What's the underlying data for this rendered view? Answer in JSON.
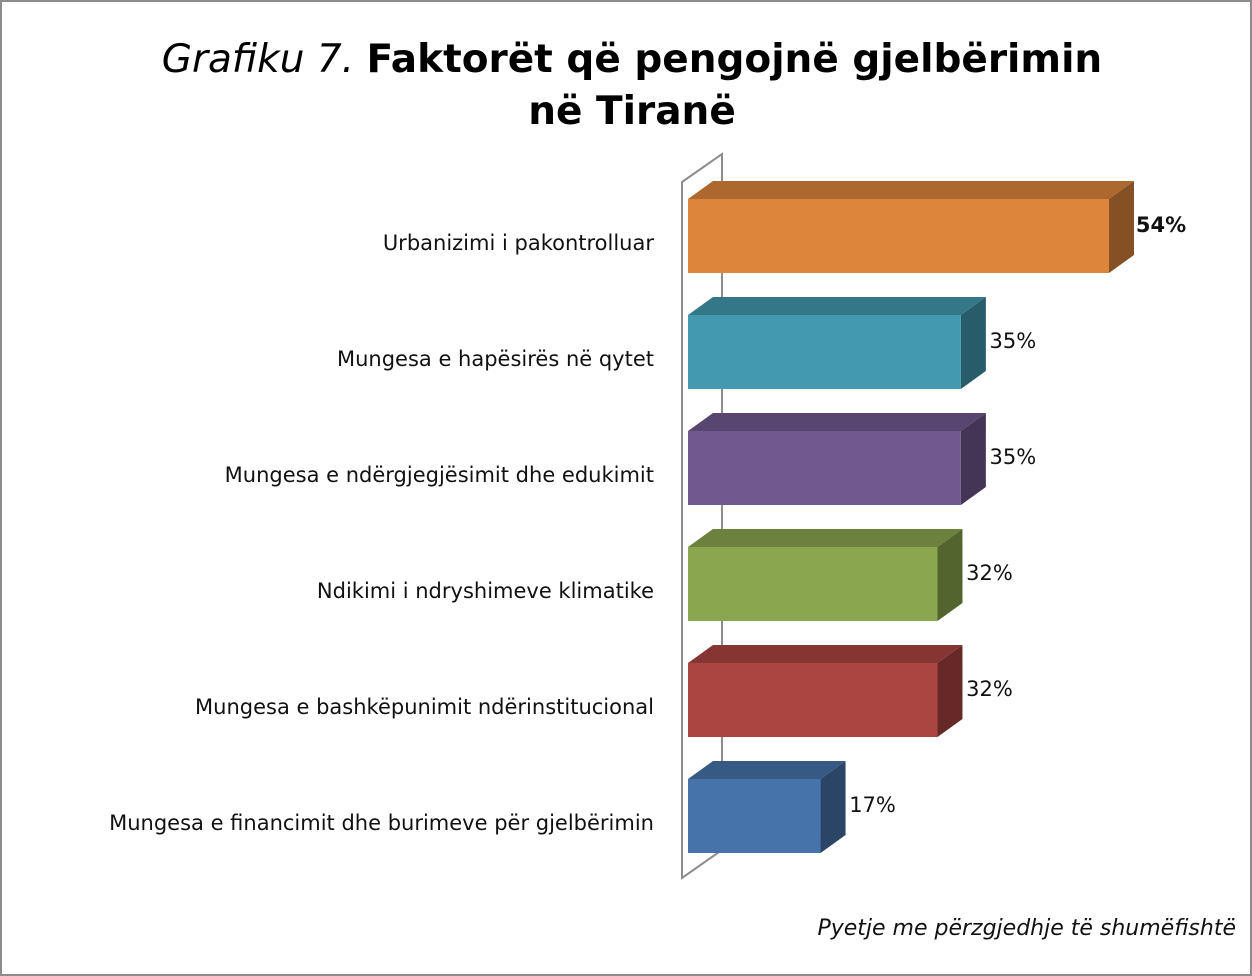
{
  "chart_data": {
    "type": "bar3d",
    "figure_label": "Grafiku 7.",
    "title": "Faktorët që pengojnë gjelbërimin në Tiranë",
    "categories": [
      "Urbanizimi i pakontrolluar",
      "Mungesa e hapësirës në qytet",
      "Mungesa e ndërgjegjësimit dhe edukimit",
      "Ndikimi i ndryshimeve klimatike",
      "Mungesa e bashkëpunimit ndërinstitucional",
      "Mungesa e financimit dhe burimeve për gjelbërimin"
    ],
    "values": [
      54,
      35,
      35,
      32,
      32,
      17
    ],
    "value_labels": [
      "54%",
      "35%",
      "35%",
      "32%",
      "32%",
      "17%"
    ],
    "colors": [
      "#dd853b",
      "#4299b0",
      "#71588f",
      "#8aa64f",
      "#ab4542",
      "#4673aa"
    ],
    "note": "Pyetje me përzgjedhje të shumëfishtë"
  }
}
